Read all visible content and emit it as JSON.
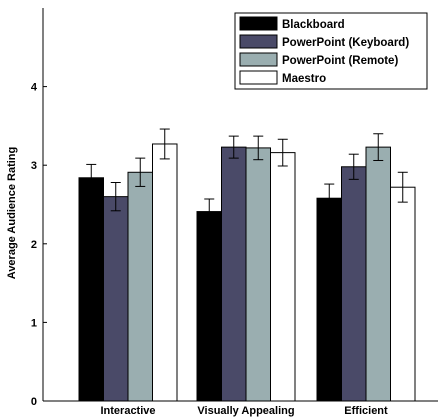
{
  "chart_data": {
    "type": "bar",
    "categories": [
      "Interactive",
      "Visually Appealing",
      "Efficient"
    ],
    "ylabel": "Average Audience Rating",
    "xlabel": "",
    "ylim": [
      0,
      5
    ],
    "yticks": [
      "0",
      "1",
      "2",
      "3",
      "4"
    ],
    "grid": false,
    "legend_position": "top-right",
    "error_bars": true,
    "series": [
      {
        "name": "Blackboard",
        "color": "#000000",
        "values": [
          2.84,
          2.41,
          2.58
        ],
        "errors": [
          0.17,
          0.16,
          0.18
        ]
      },
      {
        "name": "PowerPoint (Keyboard)",
        "color": "#4a4a68",
        "values": [
          2.6,
          3.23,
          2.98
        ],
        "errors": [
          0.18,
          0.14,
          0.16
        ]
      },
      {
        "name": "PowerPoint (Remote)",
        "color": "#9aaeb0",
        "values": [
          2.91,
          3.22,
          3.23
        ],
        "errors": [
          0.18,
          0.15,
          0.17
        ]
      },
      {
        "name": "Maestro",
        "color": "#ffffff",
        "values": [
          3.27,
          3.16,
          2.72
        ],
        "errors": [
          0.19,
          0.17,
          0.19
        ]
      }
    ]
  }
}
